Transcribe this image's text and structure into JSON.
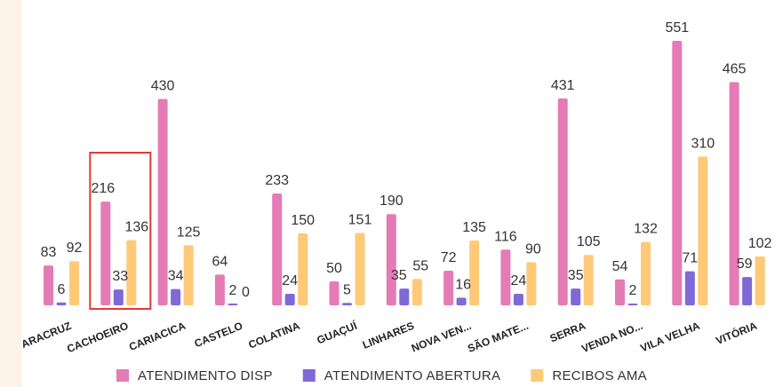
{
  "chart_data": {
    "type": "bar",
    "title": "",
    "xlabel": "",
    "ylabel": "",
    "categories": [
      "ARACRUZ",
      "CACHOEIRO",
      "CARIACICA",
      "CASTELO",
      "COLATINA",
      "GUAÇUÍ",
      "LINHARES",
      "NOVA VEN...",
      "SÃO MATE...",
      "SERRA",
      "VENDA NO...",
      "VILA VELHA",
      "VITÓRIA"
    ],
    "series": [
      {
        "name": "ATENDIMENTO DISP",
        "color": "#e57bb5",
        "values": [
          83,
          216,
          430,
          64,
          233,
          50,
          190,
          72,
          116,
          431,
          54,
          551,
          465
        ]
      },
      {
        "name": "ATENDIMENTO ABERTURA",
        "color": "#7f69d6",
        "values": [
          6,
          33,
          34,
          2,
          24,
          5,
          35,
          16,
          24,
          35,
          2,
          71,
          59
        ]
      },
      {
        "name": "RECIBOS AMA",
        "color": "#ffc978",
        "values": [
          92,
          136,
          125,
          0,
          150,
          151,
          55,
          135,
          90,
          105,
          132,
          310,
          102
        ]
      }
    ],
    "ylim": [
      0,
      551
    ],
    "grid": false,
    "legend_position": "bottom",
    "highlight_category": "CACHOEIRO",
    "highlight_color": "#e53935"
  }
}
